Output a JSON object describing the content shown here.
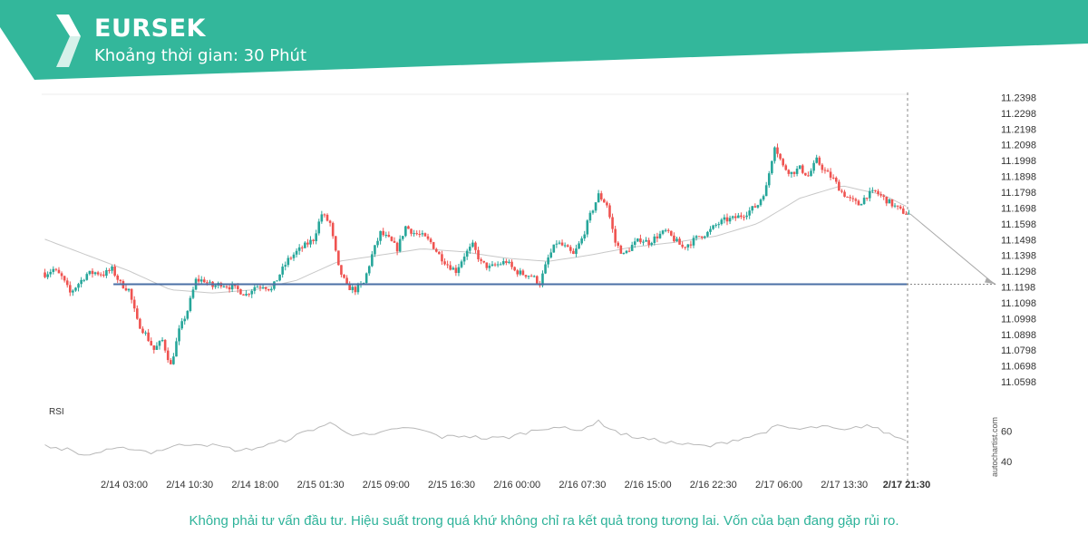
{
  "header": {
    "symbol": "EURSEK",
    "interval": "Khoảng thời gian: 30 Phút"
  },
  "colors": {
    "brand": "#33b79b",
    "bull": "#26a69a",
    "bear": "#ef5350",
    "support": "#4a6fa5",
    "ma": "#c8c8c8",
    "rsi": "#b8b8b8",
    "footer": "#2eb39a"
  },
  "footer": {
    "disclaimer": "Không phải tư vấn đầu tư. Hiệu suất trong quá khứ không chỉ ra kết quả trong tương lai. Vốn của bạn đang gặp rủi ro."
  },
  "watermark": "autochartist.com",
  "chart_data": {
    "type": "candlestick",
    "price_ticks": [
      "11.2398",
      "11.2298",
      "11.2198",
      "11.2098",
      "11.1998",
      "11.1898",
      "11.1798",
      "11.1698",
      "11.1598",
      "11.1498",
      "11.1398",
      "11.1298",
      "11.1198",
      "11.1098",
      "11.0998",
      "11.0898",
      "11.0798",
      "11.0698",
      "11.0598"
    ],
    "ylim": [
      11.0558,
      11.2418
    ],
    "time_labels": [
      "2/14 03:00",
      "2/14 10:30",
      "2/14 18:00",
      "2/15 01:30",
      "2/15 09:00",
      "2/15 16:30",
      "2/16 00:00",
      "2/16 07:30",
      "2/16 15:00",
      "2/16 22:30",
      "2/17 06:00",
      "2/17 13:30",
      "2/17 21:30"
    ],
    "support_level": 11.1215,
    "forecast": {
      "from": 11.166,
      "to": 11.1215
    },
    "close_anchors": [
      [
        0,
        11.128
      ],
      [
        3,
        11.131
      ],
      [
        6,
        11.126
      ],
      [
        9,
        11.116
      ],
      [
        12,
        11.122
      ],
      [
        15,
        11.128
      ],
      [
        18,
        11.129
      ],
      [
        21,
        11.128
      ],
      [
        24,
        11.131
      ],
      [
        27,
        11.122
      ],
      [
        30,
        11.118
      ],
      [
        33,
        11.098
      ],
      [
        36,
        11.09
      ],
      [
        39,
        11.08
      ],
      [
        42,
        11.086
      ],
      [
        45,
        11.07
      ],
      [
        48,
        11.092
      ],
      [
        51,
        11.105
      ],
      [
        54,
        11.124
      ],
      [
        57,
        11.124
      ],
      [
        60,
        11.12
      ],
      [
        63,
        11.122
      ],
      [
        66,
        11.12
      ],
      [
        69,
        11.118
      ],
      [
        72,
        11.115
      ],
      [
        75,
        11.12
      ],
      [
        78,
        11.121
      ],
      [
        81,
        11.118
      ],
      [
        84,
        11.128
      ],
      [
        87,
        11.137
      ],
      [
        90,
        11.142
      ],
      [
        93,
        11.146
      ],
      [
        96,
        11.15
      ],
      [
        99,
        11.166
      ],
      [
        102,
        11.16
      ],
      [
        105,
        11.132
      ],
      [
        108,
        11.12
      ],
      [
        111,
        11.118
      ],
      [
        114,
        11.122
      ],
      [
        117,
        11.14
      ],
      [
        120,
        11.154
      ],
      [
        123,
        11.15
      ],
      [
        126,
        11.144
      ],
      [
        129,
        11.158
      ],
      [
        132,
        11.154
      ],
      [
        135,
        11.152
      ],
      [
        138,
        11.148
      ],
      [
        141,
        11.14
      ],
      [
        144,
        11.134
      ],
      [
        147,
        11.13
      ],
      [
        150,
        11.14
      ],
      [
        153,
        11.146
      ],
      [
        156,
        11.135
      ],
      [
        159,
        11.132
      ],
      [
        162,
        11.134
      ],
      [
        165,
        11.136
      ],
      [
        168,
        11.13
      ],
      [
        171,
        11.128
      ],
      [
        174,
        11.127
      ],
      [
        177,
        11.122
      ],
      [
        180,
        11.138
      ],
      [
        183,
        11.148
      ],
      [
        186,
        11.145
      ],
      [
        189,
        11.14
      ],
      [
        192,
        11.15
      ],
      [
        195,
        11.165
      ],
      [
        198,
        11.178
      ],
      [
        201,
        11.172
      ],
      [
        204,
        11.148
      ],
      [
        207,
        11.14
      ],
      [
        210,
        11.146
      ],
      [
        213,
        11.15
      ],
      [
        216,
        11.148
      ],
      [
        219,
        11.152
      ],
      [
        222,
        11.155
      ],
      [
        225,
        11.15
      ],
      [
        228,
        11.145
      ],
      [
        231,
        11.148
      ],
      [
        234,
        11.152
      ],
      [
        237,
        11.154
      ],
      [
        240,
        11.159
      ],
      [
        243,
        11.162
      ],
      [
        246,
        11.163
      ],
      [
        249,
        11.165
      ],
      [
        252,
        11.168
      ],
      [
        255,
        11.172
      ],
      [
        258,
        11.183
      ],
      [
        261,
        11.21
      ],
      [
        264,
        11.196
      ],
      [
        267,
        11.192
      ],
      [
        270,
        11.195
      ],
      [
        273,
        11.19
      ],
      [
        276,
        11.2
      ],
      [
        279,
        11.193
      ],
      [
        282,
        11.188
      ],
      [
        285,
        11.18
      ],
      [
        288,
        11.175
      ],
      [
        291,
        11.172
      ],
      [
        294,
        11.178
      ],
      [
        297,
        11.18
      ],
      [
        300,
        11.176
      ],
      [
        303,
        11.172
      ],
      [
        306,
        11.168
      ],
      [
        309,
        11.166
      ]
    ],
    "candle_count": 310,
    "ma_anchors": [
      [
        0,
        11.15
      ],
      [
        15,
        11.14
      ],
      [
        30,
        11.13
      ],
      [
        45,
        11.118
      ],
      [
        60,
        11.116
      ],
      [
        75,
        11.118
      ],
      [
        90,
        11.124
      ],
      [
        105,
        11.136
      ],
      [
        120,
        11.14
      ],
      [
        135,
        11.144
      ],
      [
        150,
        11.142
      ],
      [
        165,
        11.138
      ],
      [
        180,
        11.136
      ],
      [
        195,
        11.14
      ],
      [
        210,
        11.145
      ],
      [
        225,
        11.148
      ],
      [
        240,
        11.152
      ],
      [
        255,
        11.16
      ],
      [
        270,
        11.176
      ],
      [
        285,
        11.184
      ],
      [
        300,
        11.178
      ],
      [
        309,
        11.17
      ]
    ],
    "rsi": {
      "label": "RSI",
      "ticks": [
        60,
        40
      ],
      "ylim": [
        30,
        75
      ],
      "anchors": [
        [
          0,
          50
        ],
        [
          8,
          48
        ],
        [
          14,
          44
        ],
        [
          22,
          47
        ],
        [
          30,
          49
        ],
        [
          38,
          46
        ],
        [
          46,
          50
        ],
        [
          54,
          52
        ],
        [
          62,
          50
        ],
        [
          70,
          47
        ],
        [
          78,
          50
        ],
        [
          86,
          54
        ],
        [
          94,
          60
        ],
        [
          102,
          65
        ],
        [
          110,
          58
        ],
        [
          118,
          57
        ],
        [
          126,
          62
        ],
        [
          134,
          61
        ],
        [
          142,
          56
        ],
        [
          150,
          57
        ],
        [
          158,
          55
        ],
        [
          166,
          56
        ],
        [
          174,
          60
        ],
        [
          182,
          63
        ],
        [
          190,
          60
        ],
        [
          198,
          66
        ],
        [
          206,
          58
        ],
        [
          214,
          55
        ],
        [
          222,
          53
        ],
        [
          230,
          51
        ],
        [
          238,
          50
        ],
        [
          246,
          54
        ],
        [
          254,
          57
        ],
        [
          262,
          63
        ],
        [
          270,
          61
        ],
        [
          278,
          63
        ],
        [
          286,
          60
        ],
        [
          294,
          64
        ],
        [
          302,
          58
        ],
        [
          309,
          53
        ]
      ]
    }
  }
}
